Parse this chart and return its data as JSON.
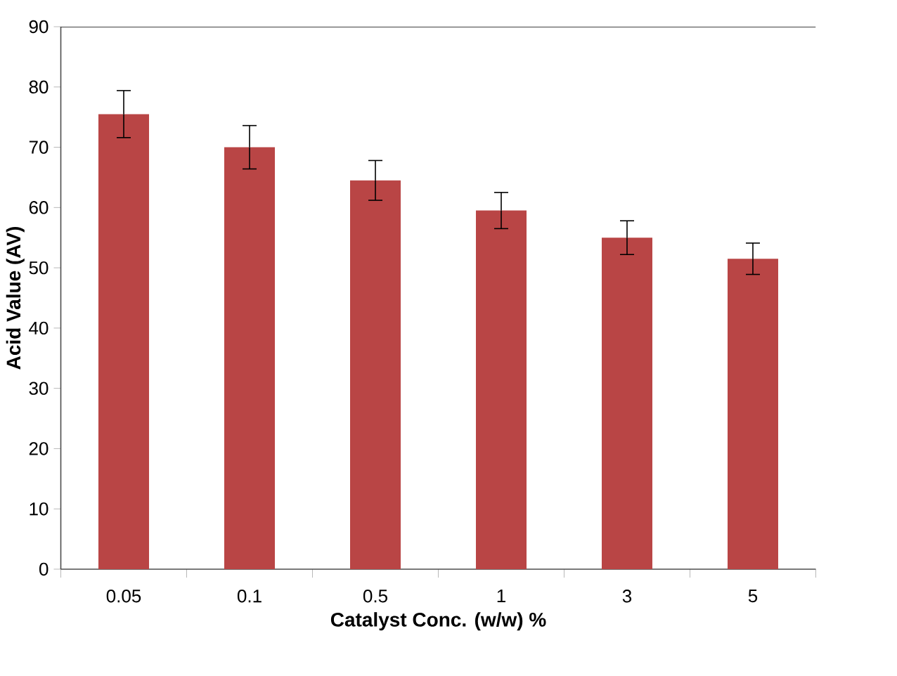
{
  "chart_data": {
    "type": "bar",
    "xlabel": "Catalyst Conc. (w/w) %",
    "ylabel": "Acid Value (AV)",
    "categories": [
      "0.05",
      "0.1",
      "0.5",
      "1",
      "3",
      "5"
    ],
    "values": [
      75.5,
      70,
      64.5,
      59.5,
      55,
      51.5
    ],
    "errors": [
      3.9,
      3.6,
      3.3,
      3,
      2.8,
      2.6
    ],
    "color": "#b94545",
    "ylim": [
      0,
      90
    ],
    "yticks": [
      0,
      10,
      20,
      30,
      40,
      50,
      60,
      70,
      80,
      90
    ]
  }
}
